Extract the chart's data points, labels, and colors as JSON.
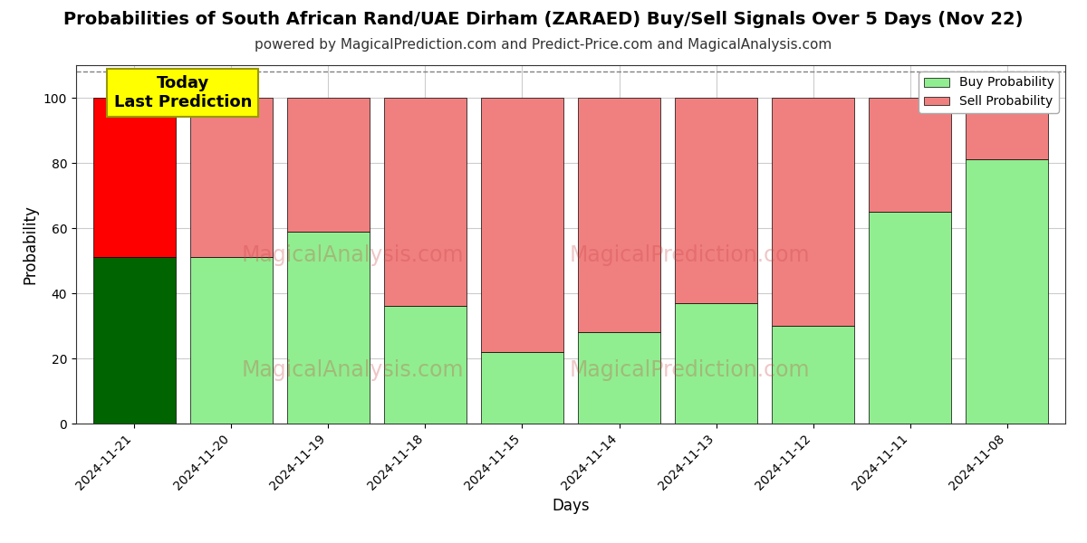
{
  "title": "Probabilities of South African Rand/UAE Dirham (ZARAED) Buy/Sell Signals Over 5 Days (Nov 22)",
  "subtitle": "powered by MagicalPrediction.com and Predict-Price.com and MagicalAnalysis.com",
  "xlabel": "Days",
  "ylabel": "Probability",
  "categories": [
    "2024-11-21",
    "2024-11-20",
    "2024-11-19",
    "2024-11-18",
    "2024-11-15",
    "2024-11-14",
    "2024-11-13",
    "2024-11-12",
    "2024-11-11",
    "2024-11-08"
  ],
  "buy_values": [
    51,
    51,
    59,
    36,
    22,
    28,
    37,
    30,
    65,
    81
  ],
  "sell_values": [
    49,
    49,
    41,
    64,
    78,
    72,
    63,
    70,
    35,
    19
  ],
  "today_bar_index": 0,
  "today_buy_color": "#006400",
  "today_sell_color": "#ff0000",
  "normal_buy_color": "#90EE90",
  "normal_sell_color": "#F08080",
  "today_annotation": "Today\nLast Prediction",
  "annotation_bg_color": "#ffff00",
  "legend_buy_label": "Buy Probability",
  "legend_sell_label": "Sell Probability",
  "ylim": [
    0,
    110
  ],
  "yticks": [
    0,
    20,
    40,
    60,
    80,
    100
  ],
  "dashed_line_y": 108,
  "background_color": "#ffffff",
  "grid_color": "#cccccc",
  "title_fontsize": 14,
  "subtitle_fontsize": 11,
  "bar_edge_color": "#000000",
  "bar_width": 0.85
}
